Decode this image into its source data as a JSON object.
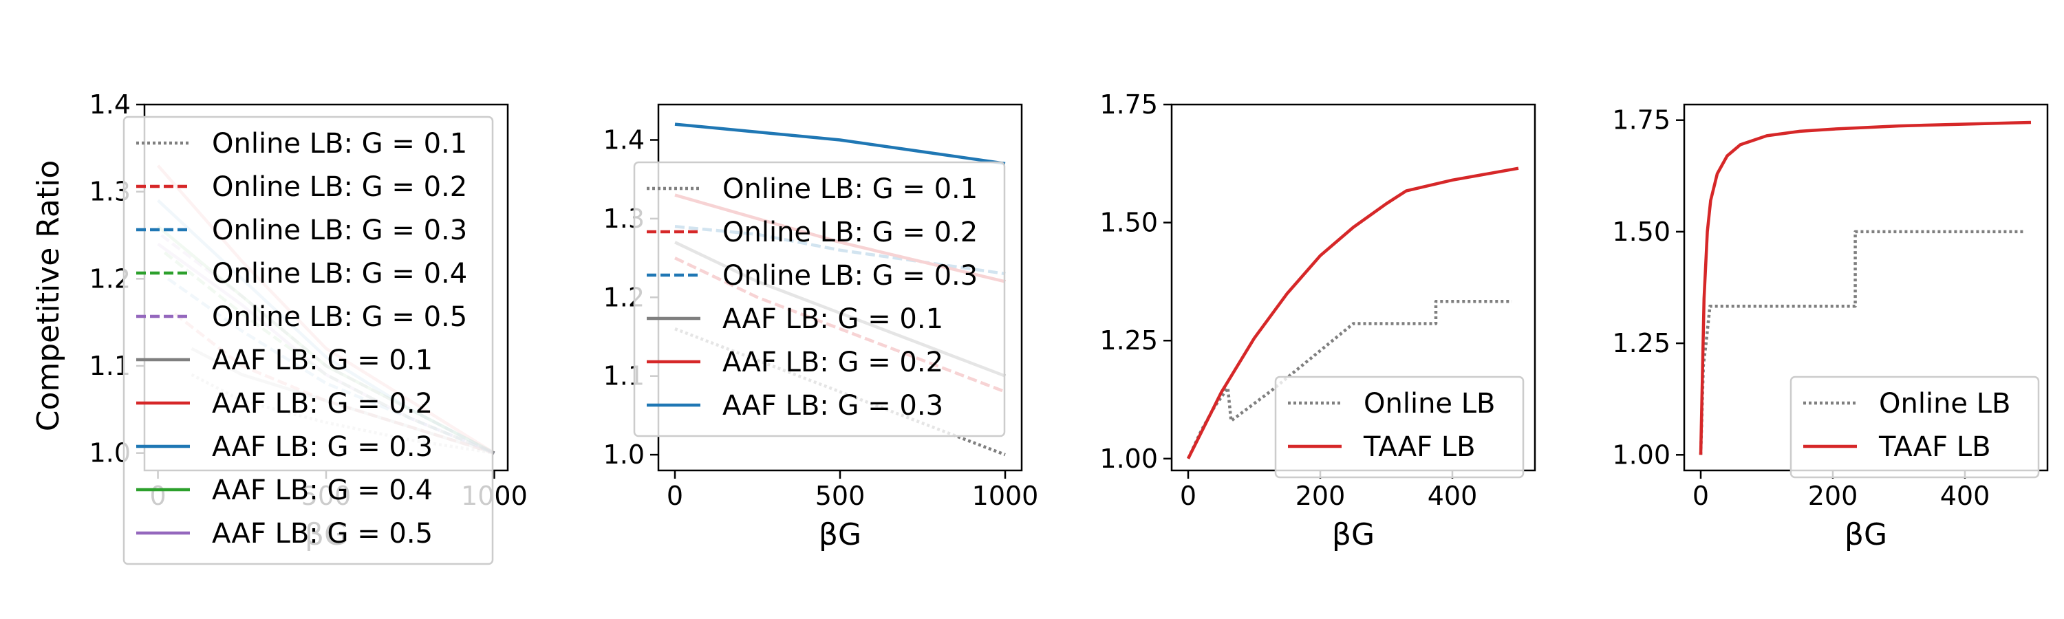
{
  "figure": {
    "shared_ylabel": "Competitive Ratio"
  },
  "chart_data": [
    {
      "type": "line",
      "xlabel": "βG",
      "ylabel": "Competitive Ratio",
      "xlim": [
        -40,
        1040
      ],
      "ylim": [
        0.98,
        1.4
      ],
      "xticks": [
        0,
        500,
        1000
      ],
      "yticks": [
        1.0,
        1.1,
        1.2,
        1.3,
        1.4
      ],
      "legend_position": "upper-left",
      "series": [
        {
          "name": "Online LB: G = 0.1",
          "color": "#7f7f7f",
          "style": "dotted",
          "faded": true,
          "x": [
            100,
            250,
            500,
            750,
            1000
          ],
          "y": [
            1.09,
            1.06,
            1.035,
            1.015,
            1.0
          ]
        },
        {
          "name": "Online LB: G = 0.2",
          "color": "#d62728",
          "style": "dashed",
          "faded": true,
          "x": [
            50,
            250,
            500,
            750,
            1000
          ],
          "y": [
            1.16,
            1.1,
            1.06,
            1.03,
            1.0
          ]
        },
        {
          "name": "Online LB: G = 0.3",
          "color": "#1f77b4",
          "style": "dashed",
          "faded": true,
          "x": [
            30,
            250,
            500,
            750,
            1000
          ],
          "y": [
            1.2,
            1.14,
            1.08,
            1.04,
            1.0
          ]
        },
        {
          "name": "Online LB: G = 0.4",
          "color": "#2ca02c",
          "style": "dashed",
          "faded": true,
          "x": [
            20,
            250,
            500,
            750,
            1000
          ],
          "y": [
            1.23,
            1.16,
            1.09,
            1.04,
            1.0
          ]
        },
        {
          "name": "Online LB: G = 0.5",
          "color": "#9467bd",
          "style": "dashed",
          "faded": true,
          "x": [
            10,
            250,
            500,
            750,
            1000
          ],
          "y": [
            1.25,
            1.18,
            1.1,
            1.05,
            1.0
          ]
        },
        {
          "name": "AAF LB: G = 0.1",
          "color": "#7f7f7f",
          "style": "solid",
          "faded": true,
          "x": [
            100,
            250,
            500,
            750,
            1000
          ],
          "y": [
            1.12,
            1.09,
            1.06,
            1.03,
            1.0
          ]
        },
        {
          "name": "AAF LB: G = 0.2",
          "color": "#d62728",
          "style": "solid",
          "faded": true,
          "x": [
            0,
            250,
            500,
            750,
            1000
          ],
          "y": [
            1.33,
            1.22,
            1.12,
            1.06,
            1.0
          ]
        },
        {
          "name": "AAF LB: G = 0.3",
          "color": "#1f77b4",
          "style": "solid",
          "faded": true,
          "x": [
            0,
            250,
            500,
            750,
            1000
          ],
          "y": [
            1.29,
            1.2,
            1.11,
            1.05,
            1.0
          ]
        },
        {
          "name": "AAF LB: G = 0.4",
          "color": "#2ca02c",
          "style": "solid",
          "faded": true,
          "x": [
            0,
            250,
            500,
            750,
            1000
          ],
          "y": [
            1.26,
            1.18,
            1.1,
            1.05,
            1.0
          ]
        },
        {
          "name": "AAF LB: G = 0.5",
          "color": "#9467bd",
          "style": "solid",
          "faded": true,
          "x": [
            0,
            250,
            500,
            750,
            1000
          ],
          "y": [
            1.24,
            1.17,
            1.09,
            1.04,
            1.0
          ]
        }
      ]
    },
    {
      "type": "line",
      "xlabel": "βG",
      "ylabel": "",
      "xlim": [
        -50,
        1050
      ],
      "ylim": [
        0.98,
        1.445
      ],
      "xticks": [
        0,
        500,
        1000
      ],
      "yticks": [
        1.0,
        1.1,
        1.2,
        1.3,
        1.4
      ],
      "legend_position": "center-right",
      "series": [
        {
          "name": "Online LB: G = 0.1",
          "color": "#7f7f7f",
          "style": "dotted",
          "faded": false,
          "x": [
            0,
            250,
            500,
            750,
            1000
          ],
          "y": [
            1.16,
            1.12,
            1.08,
            1.04,
            1.0
          ]
        },
        {
          "name": "Online LB: G = 0.2",
          "color": "#d62728",
          "style": "dashed",
          "faded": false,
          "x": [
            0,
            250,
            500,
            750,
            1000
          ],
          "y": [
            1.25,
            1.2,
            1.16,
            1.12,
            1.08
          ]
        },
        {
          "name": "Online LB: G = 0.3",
          "color": "#1f77b4",
          "style": "dashed",
          "faded": false,
          "x": [
            0,
            250,
            500,
            750,
            1000
          ],
          "y": [
            1.29,
            1.28,
            1.26,
            1.245,
            1.23
          ]
        },
        {
          "name": "AAF LB: G = 0.1",
          "color": "#7f7f7f",
          "style": "solid",
          "faded": false,
          "x": [
            0,
            250,
            500,
            750,
            1000
          ],
          "y": [
            1.27,
            1.22,
            1.18,
            1.14,
            1.1
          ]
        },
        {
          "name": "AAF LB: G = 0.2",
          "color": "#d62728",
          "style": "solid",
          "faded": false,
          "x": [
            0,
            250,
            500,
            750,
            1000
          ],
          "y": [
            1.33,
            1.3,
            1.27,
            1.245,
            1.22
          ]
        },
        {
          "name": "AAF LB: G = 0.3",
          "color": "#1f77b4",
          "style": "solid",
          "faded": false,
          "x": [
            0,
            250,
            500,
            750,
            1000
          ],
          "y": [
            1.42,
            1.41,
            1.4,
            1.385,
            1.37
          ]
        }
      ]
    },
    {
      "type": "line",
      "xlabel": "βG",
      "ylabel": "",
      "xlim": [
        -25,
        525
      ],
      "ylim": [
        0.975,
        1.75
      ],
      "xticks": [
        0,
        200,
        400
      ],
      "yticks": [
        1.0,
        1.25,
        1.5,
        1.75
      ],
      "legend_position": "lower-right",
      "series": [
        {
          "name": "Online LB",
          "color": "#7f7f7f",
          "style": "dotted",
          "faded": false,
          "x": [
            0,
            20,
            40,
            60,
            65,
            125,
            250,
            375,
            375,
            490
          ],
          "y": [
            1.0,
            1.06,
            1.11,
            1.15,
            1.08,
            1.143,
            1.286,
            1.286,
            1.333,
            1.333
          ]
        },
        {
          "name": "TAAF LB",
          "color": "#d62728",
          "style": "solid",
          "faded": false,
          "x": [
            0,
            50,
            100,
            150,
            200,
            250,
            300,
            330,
            400,
            500
          ],
          "y": [
            1.0,
            1.14,
            1.255,
            1.35,
            1.43,
            1.49,
            1.54,
            1.567,
            1.59,
            1.615
          ]
        }
      ]
    },
    {
      "type": "line",
      "xlabel": "βG",
      "ylabel": "",
      "xlim": [
        -25,
        525
      ],
      "ylim": [
        0.965,
        1.785
      ],
      "xticks": [
        0,
        200,
        400
      ],
      "yticks": [
        1.0,
        1.25,
        1.5,
        1.75
      ],
      "legend_position": "lower-right",
      "series": [
        {
          "name": "Online LB",
          "color": "#7f7f7f",
          "style": "dotted",
          "faded": false,
          "x": [
            0,
            4,
            4,
            8,
            8,
            14,
            14,
            234,
            234,
            490
          ],
          "y": [
            1.0,
            1.2,
            1.2,
            1.25,
            1.25,
            1.333,
            1.333,
            1.333,
            1.5,
            1.5
          ]
        },
        {
          "name": "TAAF LB",
          "color": "#d62728",
          "style": "solid",
          "faded": false,
          "x": [
            0,
            5,
            10,
            15,
            25,
            40,
            60,
            100,
            150,
            200,
            300,
            400,
            500
          ],
          "y": [
            1.0,
            1.35,
            1.5,
            1.57,
            1.63,
            1.67,
            1.695,
            1.715,
            1.725,
            1.73,
            1.737,
            1.741,
            1.745
          ]
        }
      ]
    }
  ]
}
